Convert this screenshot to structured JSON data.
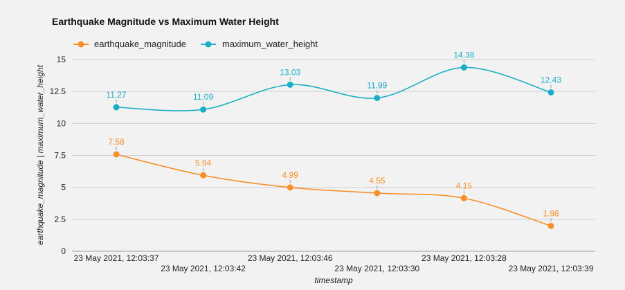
{
  "chart_data": {
    "type": "line",
    "title": "Earthquake Magnitude vs Maximum Water Height",
    "xlabel": "timestamp",
    "ylabel": "earthquake_magnitude | maximum_water_height",
    "categories": [
      "23 May 2021, 12:03:37",
      "23 May 2021, 12:03:42",
      "23 May 2021, 12:03:46",
      "23 May 2021, 12:03:30",
      "23 May 2021, 12:03:28",
      "23 May 2021, 12:03:39"
    ],
    "series": [
      {
        "name": "earthquake_magnitude",
        "color": "#f7902b",
        "values": [
          7.58,
          5.94,
          4.99,
          4.55,
          4.15,
          1.98
        ],
        "labels": [
          "7.58",
          "5.94",
          "4.99",
          "4.55",
          "4.15",
          "1.98"
        ]
      },
      {
        "name": "maximum_water_height",
        "color": "#1aafc6",
        "values": [
          11.27,
          11.09,
          13.03,
          11.99,
          14.38,
          12.43
        ],
        "labels": [
          "11.27",
          "11.09",
          "13.03",
          "11.99",
          "14.38",
          "12.43"
        ]
      }
    ],
    "ylim": [
      0,
      15
    ],
    "yticks": [
      0,
      2.5,
      5,
      7.5,
      10,
      12.5,
      15
    ],
    "ytick_labels": [
      "0",
      "2.5",
      "5",
      "7.5",
      "10",
      "12.5",
      "15"
    ],
    "grid": true,
    "legend_position": "top-left"
  }
}
